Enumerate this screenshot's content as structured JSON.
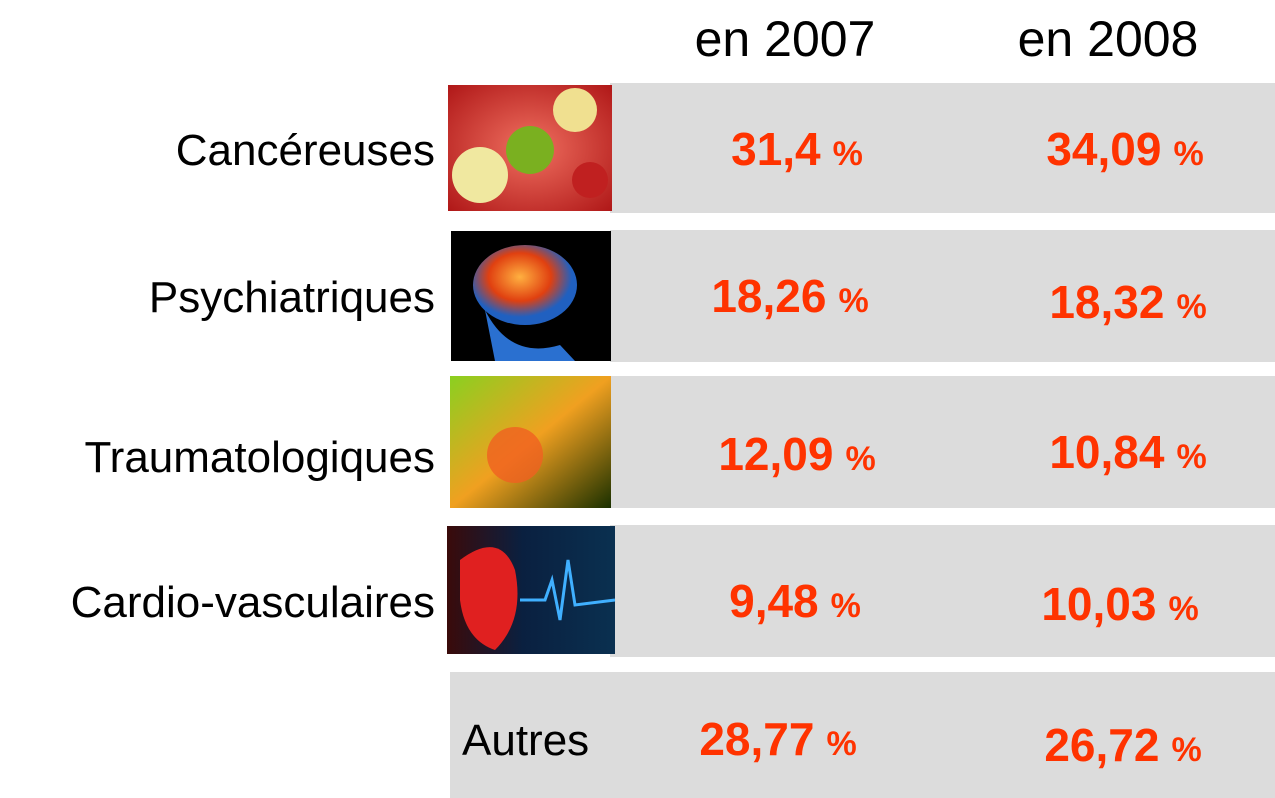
{
  "header": {
    "columns": [
      "en 2007",
      "en 2008"
    ]
  },
  "unit": "%",
  "rows": [
    {
      "label": "Cancéreuses",
      "values": [
        "31,4",
        "34,09"
      ]
    },
    {
      "label": "Psychiatriques",
      "values": [
        "18,26",
        "18,32"
      ]
    },
    {
      "label": "Traumatologiques",
      "values": [
        "12,09",
        "10,84"
      ]
    },
    {
      "label": "Cardio-vasculaires",
      "values": [
        "9,48",
        "10,03"
      ]
    },
    {
      "label": "Autres",
      "values": [
        "28,77",
        "26,72"
      ]
    }
  ]
}
